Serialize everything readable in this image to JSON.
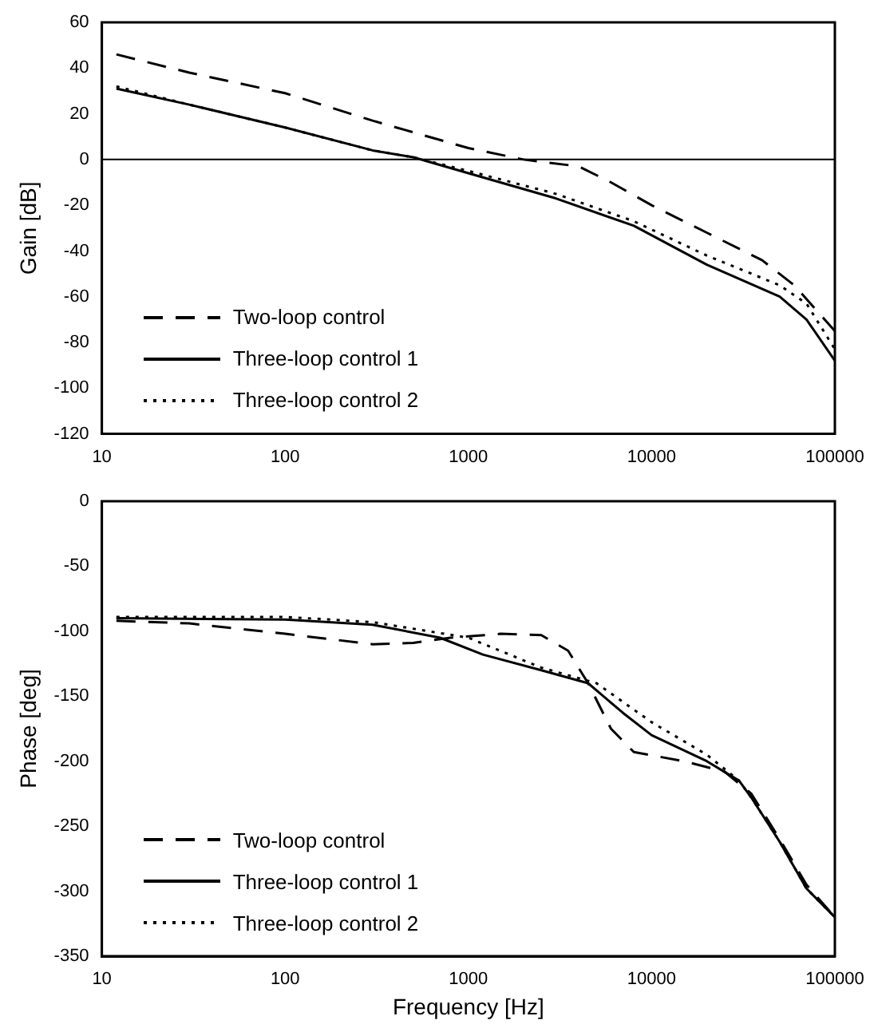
{
  "chart_data": [
    {
      "type": "line",
      "ylabel": "Gain [dB]",
      "log": "x",
      "xlim": [
        10,
        100000
      ],
      "xticks": [
        10,
        100,
        1000,
        10000,
        100000
      ],
      "ylim": [
        -120,
        60
      ],
      "yticks": [
        -120,
        -100,
        -80,
        -60,
        -40,
        -20,
        0,
        20,
        40,
        60
      ],
      "grid": false,
      "legend": "bottom left",
      "marker": "none",
      "ref_lines": [
        {
          "axis": "y",
          "value": 0,
          "color": "#000000"
        }
      ],
      "series": [
        {
          "name": "Two-loop control",
          "color": "#000000",
          "line_style": "dashed",
          "x": [
            12,
            30,
            100,
            300,
            1000,
            2000,
            4000,
            6000,
            10000,
            20000,
            40000,
            60000,
            100000
          ],
          "values": [
            46,
            38,
            29,
            17,
            5,
            0,
            -3,
            -10,
            -20,
            -32,
            -44,
            -55,
            -75
          ]
        },
        {
          "name": "Three-loop control 1",
          "color": "#000000",
          "line_style": "solid",
          "x": [
            12,
            30,
            100,
            300,
            500,
            1000,
            3000,
            8000,
            20000,
            50000,
            70000,
            100000
          ],
          "values": [
            31,
            24,
            14,
            4,
            1,
            -6,
            -17,
            -29,
            -46,
            -60,
            -70,
            -88
          ]
        },
        {
          "name": "Three-loop control 2",
          "color": "#000000",
          "line_style": "dotted",
          "x": [
            12,
            30,
            100,
            300,
            500,
            1000,
            3000,
            8000,
            20000,
            50000,
            70000,
            100000
          ],
          "values": [
            32,
            24,
            14,
            4,
            1,
            -5,
            -15,
            -27,
            -42,
            -55,
            -63,
            -83
          ]
        }
      ]
    },
    {
      "type": "line",
      "xlabel": "Frequency [Hz]",
      "ylabel": "Phase [deg]",
      "log": "x",
      "xlim": [
        10,
        100000
      ],
      "xticks": [
        10,
        100,
        1000,
        10000,
        100000
      ],
      "ylim": [
        -350,
        0
      ],
      "yticks": [
        -350,
        -300,
        -250,
        -200,
        -150,
        -100,
        -50,
        0
      ],
      "grid": false,
      "legend": "bottom left",
      "marker": "none",
      "series": [
        {
          "name": "Two-loop control",
          "color": "#000000",
          "line_style": "dashed",
          "x": [
            12,
            30,
            100,
            300,
            500,
            800,
            1500,
            2500,
            3500,
            4500,
            6000,
            8000,
            15000,
            25000,
            35000,
            50000,
            70000,
            100000
          ],
          "values": [
            -92,
            -94,
            -102,
            -110,
            -109,
            -105,
            -102,
            -103,
            -115,
            -140,
            -175,
            -193,
            -200,
            -208,
            -225,
            -260,
            -295,
            -320
          ]
        },
        {
          "name": "Three-loop control 1",
          "color": "#000000",
          "line_style": "solid",
          "x": [
            12,
            100,
            300,
            700,
            1200,
            2500,
            4500,
            7000,
            10000,
            20000,
            30000,
            35000,
            50000,
            70000,
            100000
          ],
          "values": [
            -90,
            -91,
            -95,
            -105,
            -118,
            -130,
            -140,
            -163,
            -180,
            -200,
            -215,
            -228,
            -262,
            -298,
            -320
          ]
        },
        {
          "name": "Three-loop control 2",
          "color": "#000000",
          "line_style": "dotted",
          "x": [
            12,
            100,
            300,
            1000,
            2500,
            5000,
            10000,
            20000,
            30000,
            35000,
            50000,
            70000,
            100000
          ],
          "values": [
            -89,
            -89,
            -93,
            -105,
            -128,
            -140,
            -170,
            -195,
            -215,
            -228,
            -262,
            -298,
            -320
          ]
        }
      ]
    }
  ]
}
